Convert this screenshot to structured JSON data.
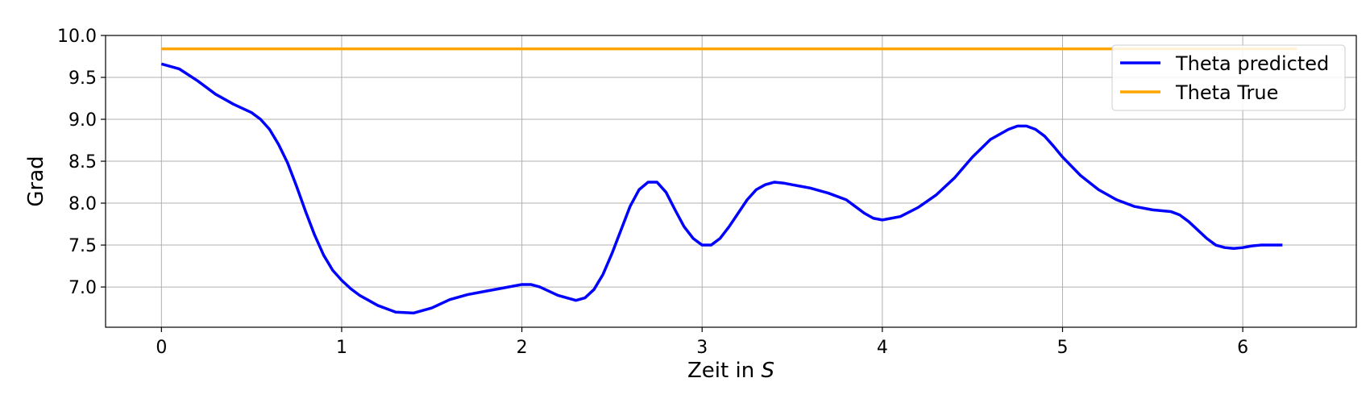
{
  "chart_data": {
    "type": "line",
    "title": "",
    "xlabel": "Zeit in S",
    "xlabel_parts": [
      "Zeit in ",
      "S"
    ],
    "ylabel": "Grad",
    "xlim": [
      -0.31,
      6.63
    ],
    "ylim": [
      6.52,
      10.0
    ],
    "xticks": [
      0,
      1,
      2,
      3,
      4,
      5,
      6
    ],
    "xtick_labels": [
      "0",
      "1",
      "2",
      "3",
      "4",
      "5",
      "6"
    ],
    "yticks": [
      7.0,
      7.5,
      8.0,
      8.5,
      9.0,
      9.5,
      10.0
    ],
    "ytick_labels": [
      "7.0",
      "7.5",
      "8.0",
      "8.5",
      "9.0",
      "9.5",
      "10.0"
    ],
    "grid": true,
    "legend": {
      "placement": "top-right",
      "entries": [
        "Theta predicted",
        "Theta True"
      ]
    },
    "series": [
      {
        "name": "Theta predicted",
        "color": "#0000ff",
        "x": [
          0,
          0.1,
          0.2,
          0.3,
          0.4,
          0.5,
          0.55,
          0.6,
          0.65,
          0.7,
          0.75,
          0.8,
          0.85,
          0.9,
          0.95,
          1.0,
          1.05,
          1.1,
          1.15,
          1.2,
          1.3,
          1.4,
          1.5,
          1.6,
          1.7,
          1.8,
          1.9,
          2.0,
          2.05,
          2.1,
          2.2,
          2.3,
          2.35,
          2.4,
          2.45,
          2.5,
          2.55,
          2.6,
          2.65,
          2.7,
          2.75,
          2.8,
          2.85,
          2.9,
          2.95,
          3.0,
          3.05,
          3.1,
          3.15,
          3.2,
          3.25,
          3.3,
          3.35,
          3.4,
          3.45,
          3.5,
          3.55,
          3.6,
          3.7,
          3.8,
          3.85,
          3.9,
          3.95,
          4.0,
          4.1,
          4.2,
          4.3,
          4.4,
          4.5,
          4.6,
          4.7,
          4.75,
          4.8,
          4.85,
          4.9,
          4.95,
          5.0,
          5.1,
          5.2,
          5.3,
          5.4,
          5.5,
          5.6,
          5.65,
          5.7,
          5.75,
          5.8,
          5.85,
          5.9,
          5.95,
          6.0,
          6.05,
          6.1,
          6.15,
          6.22
        ],
        "y": [
          9.66,
          9.6,
          9.46,
          9.3,
          9.18,
          9.08,
          9.0,
          8.88,
          8.7,
          8.48,
          8.2,
          7.9,
          7.62,
          7.38,
          7.2,
          7.08,
          6.98,
          6.9,
          6.84,
          6.78,
          6.7,
          6.69,
          6.75,
          6.85,
          6.91,
          6.95,
          6.99,
          7.03,
          7.03,
          7.0,
          6.9,
          6.84,
          6.87,
          6.97,
          7.15,
          7.4,
          7.68,
          7.96,
          8.16,
          8.25,
          8.25,
          8.13,
          7.92,
          7.72,
          7.58,
          7.5,
          7.5,
          7.58,
          7.72,
          7.88,
          8.04,
          8.16,
          8.22,
          8.25,
          8.24,
          8.22,
          8.2,
          8.18,
          8.12,
          8.04,
          7.96,
          7.88,
          7.82,
          7.8,
          7.84,
          7.95,
          8.1,
          8.3,
          8.55,
          8.76,
          8.88,
          8.92,
          8.92,
          8.88,
          8.8,
          8.68,
          8.55,
          8.33,
          8.16,
          8.04,
          7.96,
          7.92,
          7.9,
          7.86,
          7.78,
          7.68,
          7.58,
          7.5,
          7.47,
          7.46,
          7.47,
          7.49,
          7.5,
          7.5,
          7.5
        ]
      },
      {
        "name": "Theta True",
        "color": "#ffa500",
        "x": [
          0,
          6.3
        ],
        "y": [
          9.84,
          9.84
        ]
      }
    ]
  }
}
